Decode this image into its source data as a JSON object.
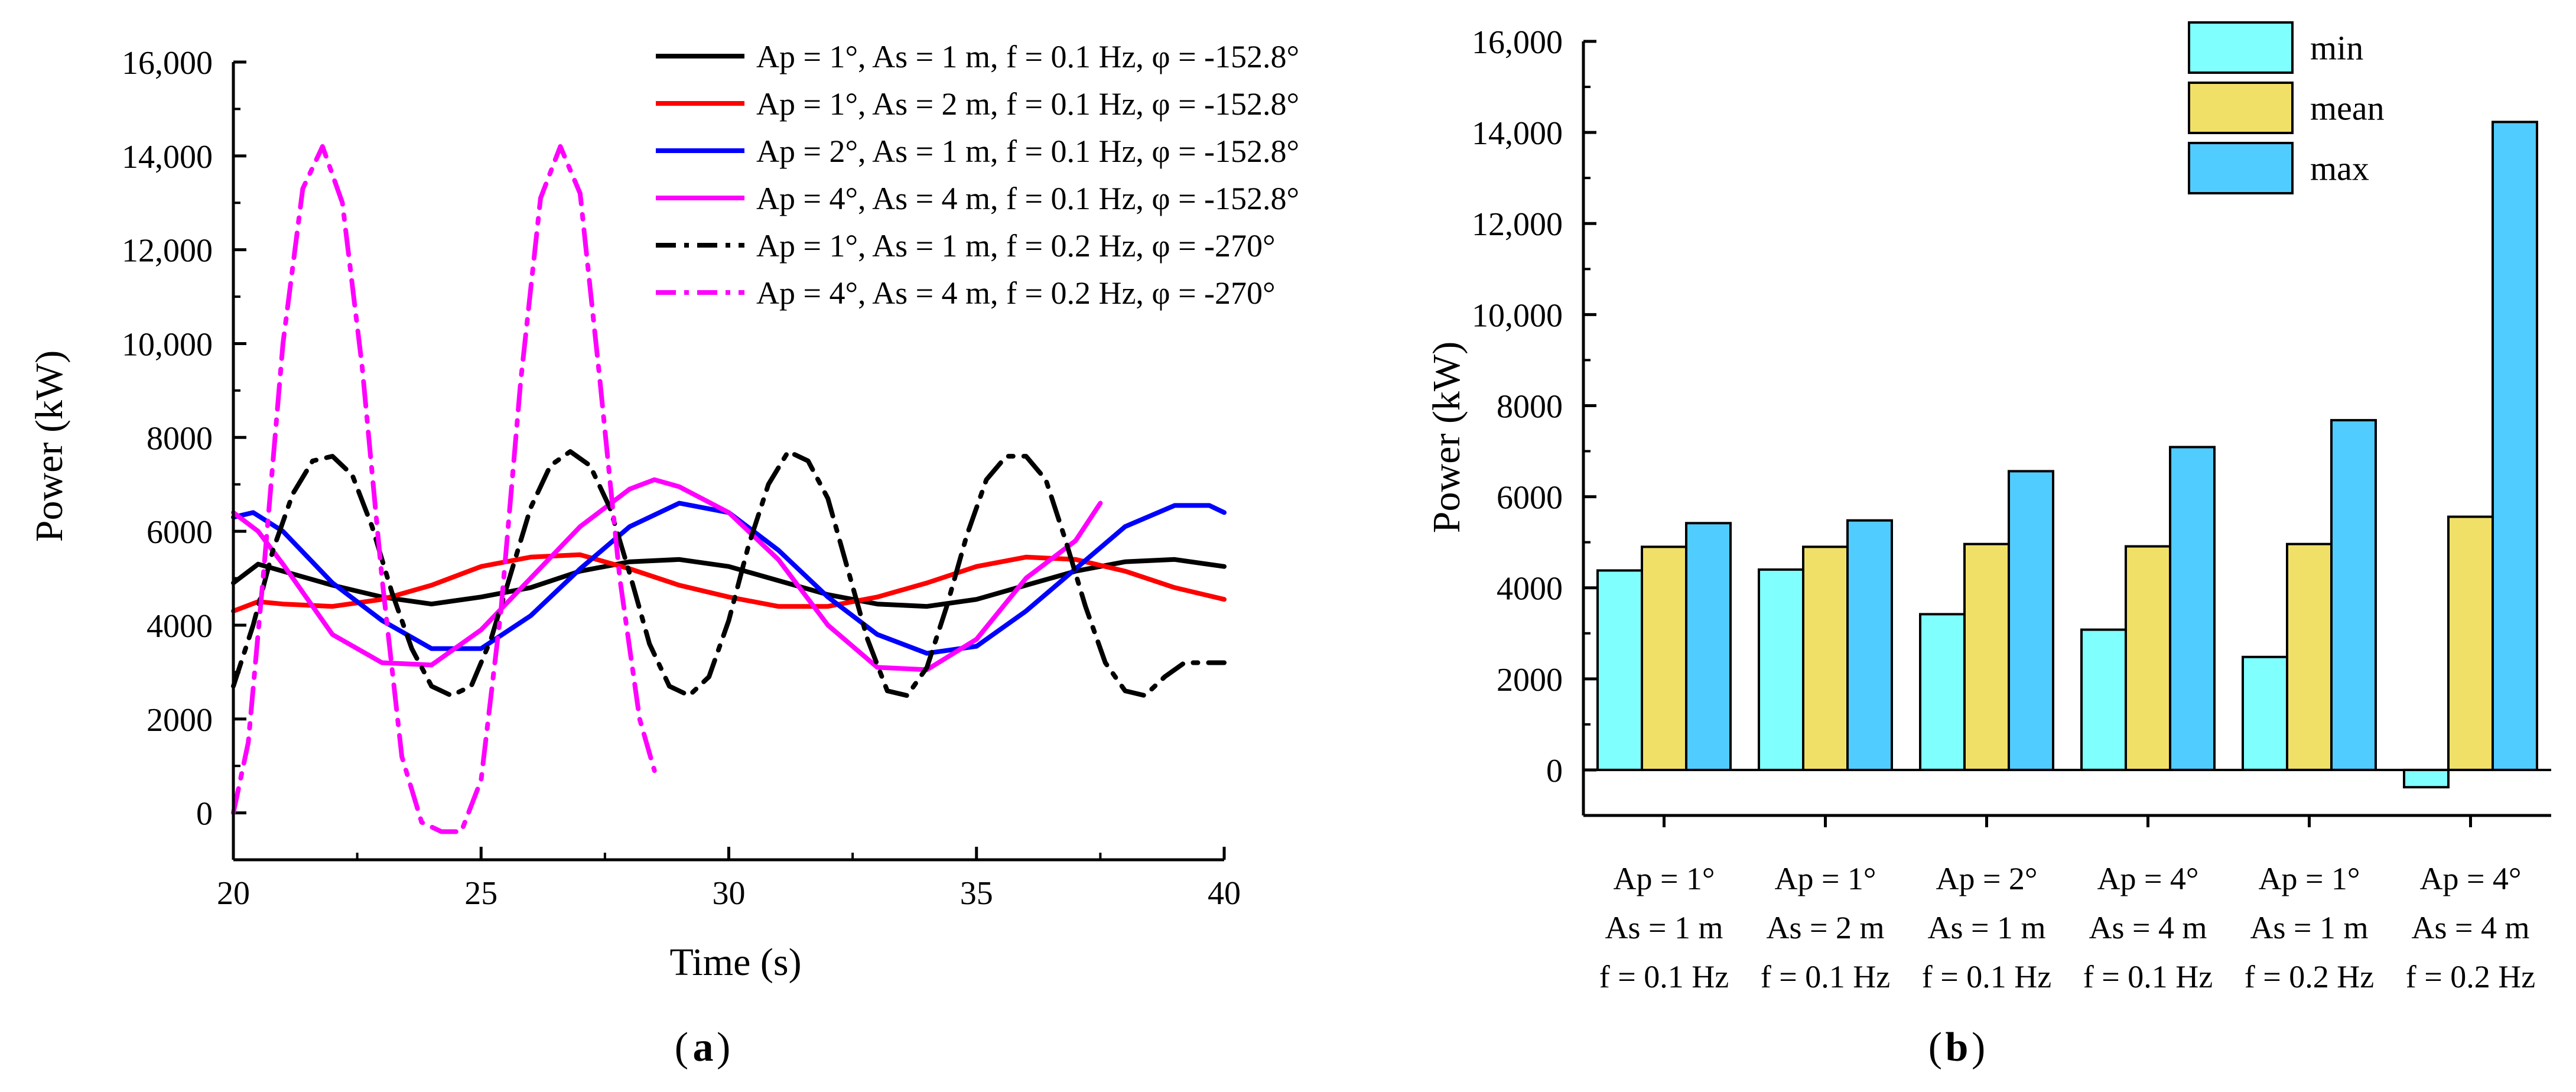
{
  "chart_data": [
    {
      "panel_label": "a",
      "type": "line",
      "xlabel": "Time (s)",
      "ylabel": "Power (kW)",
      "xlim": [
        20,
        40
      ],
      "ylim": [
        -1000,
        16000
      ],
      "xticks": [
        20,
        25,
        30,
        35,
        40
      ],
      "xtick_labels": [
        "20",
        "25",
        "30",
        "35",
        "40"
      ],
      "yticks": [
        0,
        2000,
        4000,
        6000,
        8000,
        10000,
        12000,
        14000,
        16000
      ],
      "ytick_labels": [
        "0",
        "2000",
        "4000",
        "6000",
        "8000",
        "10,000",
        "12,000",
        "14,000",
        "16,000"
      ],
      "legend_position": "top-right",
      "series": [
        {
          "name": "Ap = 1°, As = 1 m, f = 0.1 Hz, φ = -152.8°",
          "color": "#000000",
          "dash": "solid",
          "x": [
            20,
            20.5,
            21,
            22,
            23,
            24,
            25,
            26,
            27,
            28,
            29,
            30,
            31,
            32,
            33,
            34,
            35,
            36,
            37,
            38,
            39,
            40
          ],
          "y": [
            4900,
            5300,
            5150,
            4850,
            4600,
            4450,
            4600,
            4800,
            5150,
            5350,
            5400,
            5250,
            4950,
            4650,
            4450,
            4400,
            4550,
            4850,
            5150,
            5350,
            5400,
            5250
          ]
        },
        {
          "name": "Ap = 1°, As = 2 m, f = 0.1 Hz, φ = -152.8°",
          "color": "#ff0000",
          "dash": "solid",
          "x": [
            20,
            20.5,
            21,
            22,
            23,
            24,
            25,
            26,
            27,
            28,
            29,
            30,
            31,
            32,
            33,
            34,
            35,
            36,
            37,
            38,
            39,
            40
          ],
          "y": [
            4300,
            4500,
            4450,
            4400,
            4550,
            4850,
            5250,
            5450,
            5500,
            5200,
            4850,
            4600,
            4400,
            4400,
            4600,
            4900,
            5250,
            5450,
            5400,
            5150,
            4800,
            4550
          ]
        },
        {
          "name": "Ap = 2°, As = 1 m, f = 0.1 Hz, φ = -152.8°",
          "color": "#0000ff",
          "dash": "solid",
          "x": [
            20,
            20.4,
            21,
            22,
            23,
            24,
            25,
            26,
            27,
            28,
            29,
            30,
            31,
            32,
            33,
            34,
            35,
            36,
            37,
            38,
            39,
            39.7,
            40
          ],
          "y": [
            6300,
            6400,
            6000,
            4900,
            4100,
            3500,
            3500,
            4200,
            5200,
            6100,
            6600,
            6400,
            5600,
            4600,
            3800,
            3400,
            3550,
            4300,
            5200,
            6100,
            6550,
            6550,
            6400
          ]
        },
        {
          "name": "Ap = 4°, As = 4 m, f = 0.1 Hz, φ = -152.8°",
          "color": "#ff00ff",
          "dash": "solid",
          "x": [
            20,
            20.5,
            21,
            22,
            23,
            24,
            25,
            26,
            27,
            28,
            28.5,
            29,
            30,
            31,
            32,
            33,
            34,
            35,
            36,
            37,
            37.5
          ],
          "y": [
            6400,
            6000,
            5300,
            3800,
            3200,
            3150,
            3900,
            5000,
            6100,
            6900,
            7100,
            6950,
            6400,
            5400,
            4000,
            3100,
            3050,
            3700,
            5000,
            5800,
            6600
          ]
        },
        {
          "name": "Ap = 1°, As = 1 m, f = 0.2 Hz, φ = -270°",
          "color": "#000000",
          "dash": "dashdot",
          "x": [
            20,
            20.4,
            20.8,
            21.2,
            21.6,
            22,
            22.4,
            22.8,
            23.2,
            23.6,
            24,
            24.4,
            24.8,
            25.2,
            25.6,
            26,
            26.4,
            26.8,
            27.2,
            27.6,
            28,
            28.4,
            28.8,
            29.2,
            29.6,
            30,
            30.4,
            30.8,
            31.2,
            31.6,
            32,
            32.4,
            32.8,
            33.2,
            33.6,
            34,
            34.4,
            34.8,
            35.2,
            35.6,
            36,
            36.4,
            36.8,
            37.2,
            37.6,
            38,
            38.4,
            38.8,
            39.2,
            39.6,
            40
          ],
          "y": [
            2700,
            4000,
            5600,
            6800,
            7500,
            7600,
            7200,
            6100,
            4700,
            3500,
            2700,
            2500,
            2700,
            3700,
            5100,
            6500,
            7400,
            7700,
            7400,
            6500,
            5100,
            3600,
            2700,
            2500,
            2900,
            4100,
            5700,
            7000,
            7700,
            7500,
            6700,
            5200,
            3700,
            2600,
            2500,
            3100,
            4400,
            5900,
            7100,
            7600,
            7600,
            7100,
            5800,
            4400,
            3200,
            2600,
            2500,
            2900,
            3200,
            3200,
            3200
          ]
        },
        {
          "name": "Ap = 4°, As = 4 m, f = 0.2 Hz, φ = -270°",
          "color": "#ff00ff",
          "dash": "dashdot",
          "x": [
            20,
            20.3,
            20.6,
            21,
            21.4,
            21.8,
            22.2,
            22.6,
            23,
            23.4,
            23.8,
            24.2,
            24.6,
            25,
            25.4,
            25.8,
            26.2,
            26.6,
            27,
            27.4,
            27.8,
            28.2,
            28.5
          ],
          "y": [
            0,
            1500,
            5000,
            10000,
            13300,
            14200,
            13000,
            9500,
            5000,
            1200,
            -200,
            -400,
            -400,
            700,
            4300,
            9200,
            13100,
            14200,
            13200,
            9200,
            5000,
            2000,
            900
          ]
        }
      ]
    },
    {
      "panel_label": "b",
      "type": "bar",
      "ylabel": "Power (kW)",
      "ylim": [
        -1000,
        16000
      ],
      "yticks": [
        0,
        2000,
        4000,
        6000,
        8000,
        10000,
        12000,
        14000,
        16000
      ],
      "ytick_labels": [
        "0",
        "2000",
        "4000",
        "6000",
        "8000",
        "10,000",
        "12,000",
        "14,000",
        "16,000"
      ],
      "legend_position": "top-right",
      "categories": [
        [
          "Ap = 1°",
          "As = 1 m",
          "f = 0.1 Hz"
        ],
        [
          "Ap = 1°",
          "As = 2 m",
          "f = 0.1 Hz"
        ],
        [
          "Ap = 2°",
          "As = 1 m",
          "f = 0.1 Hz"
        ],
        [
          "Ap = 4°",
          "As = 4 m",
          "f = 0.1 Hz"
        ],
        [
          "Ap = 1°",
          "As = 1 m",
          "f = 0.2 Hz"
        ],
        [
          "Ap = 4°",
          "As = 4 m",
          "f = 0.2 Hz"
        ]
      ],
      "series": [
        {
          "name": "min",
          "color": "#80ffff",
          "values": [
            4380,
            4400,
            3420,
            3080,
            2480,
            -380
          ]
        },
        {
          "name": "mean",
          "color": "#f0e068",
          "values": [
            4900,
            4900,
            4960,
            4910,
            4960,
            5560
          ]
        },
        {
          "name": "max",
          "color": "#50ccff",
          "values": [
            5420,
            5480,
            6560,
            7090,
            7680,
            14230
          ]
        }
      ]
    }
  ]
}
